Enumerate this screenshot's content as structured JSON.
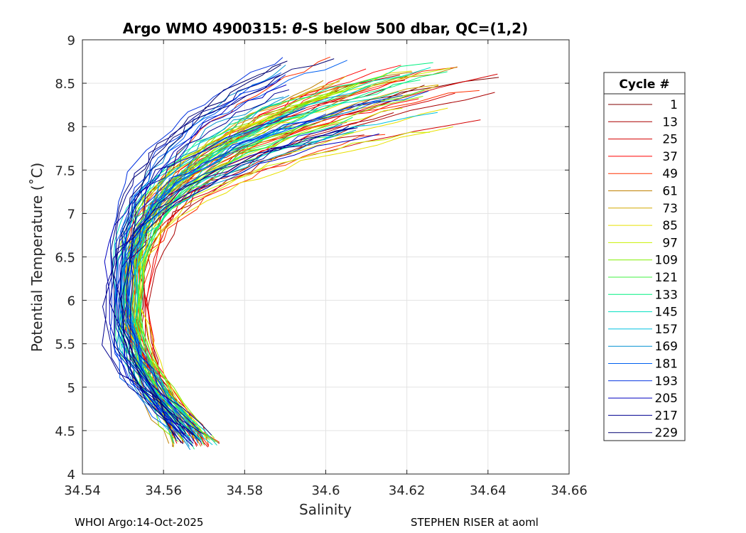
{
  "chart_data": {
    "type": "line",
    "title_parts": [
      "Argo WMO 4900315: ",
      "θ",
      "-S below 500 dbar,  QC=(1,2)"
    ],
    "xlabel": "Salinity",
    "ylabel": "Potential Temperature (˚C)",
    "xlim": [
      34.54,
      34.66
    ],
    "ylim": [
      4,
      9
    ],
    "xticks": [
      34.54,
      34.56,
      34.58,
      34.6,
      34.62,
      34.64,
      34.66
    ],
    "xtick_labels": [
      "34.54",
      "34.56",
      "34.58",
      "34.6",
      "34.62",
      "34.64",
      "34.66"
    ],
    "yticks": [
      4,
      4.5,
      5,
      5.5,
      6,
      6.5,
      7,
      7.5,
      8,
      8.5,
      9
    ],
    "ytick_labels": [
      "4",
      "4.5",
      "5",
      "5.5",
      "6",
      "6.5",
      "7",
      "7.5",
      "8",
      "8.5",
      "9"
    ],
    "grid": true,
    "legend": {
      "title": "Cycle #",
      "placement": "outside-right",
      "entries": [
        {
          "label": "1",
          "color": "#800000"
        },
        {
          "label": "13",
          "color": "#aa0000"
        },
        {
          "label": "25",
          "color": "#d40000"
        },
        {
          "label": "37",
          "color": "#ff0000"
        },
        {
          "label": "49",
          "color": "#ff3000"
        },
        {
          "label": "61",
          "color": "#c08000"
        },
        {
          "label": "73",
          "color": "#d4a800"
        },
        {
          "label": "85",
          "color": "#e8e000"
        },
        {
          "label": "97",
          "color": "#c8f000"
        },
        {
          "label": "109",
          "color": "#80f000"
        },
        {
          "label": "121",
          "color": "#40f040"
        },
        {
          "label": "133",
          "color": "#00f080"
        },
        {
          "label": "145",
          "color": "#00e0c0"
        },
        {
          "label": "157",
          "color": "#00c0e0"
        },
        {
          "label": "169",
          "color": "#0090d0"
        },
        {
          "label": "181",
          "color": "#0060f0"
        },
        {
          "label": "193",
          "color": "#0030e0"
        },
        {
          "label": "205",
          "color": "#0000c0"
        },
        {
          "label": "217",
          "color": "#000090"
        },
        {
          "label": "229",
          "color": "#000070"
        }
      ]
    },
    "series_model": {
      "count": 90,
      "description": "theta-S profile per cycle, colored by cycle number (1 to 229)",
      "deep_end": {
        "salinity_range": [
          34.562,
          34.573
        ],
        "theta_range": [
          4.3,
          4.5
        ]
      },
      "min_salinity_point": {
        "salinity_range": [
          34.545,
          34.558
        ],
        "theta_range": [
          5.5,
          6.2
        ]
      },
      "shallow_end": {
        "salinity_range": [
          34.59,
          34.642
        ],
        "theta_range": [
          7.9,
          8.8
        ]
      }
    }
  },
  "footer": {
    "left": "WHOI Argo:14-Oct-2025",
    "right": "STEPHEN RISER at aoml"
  }
}
